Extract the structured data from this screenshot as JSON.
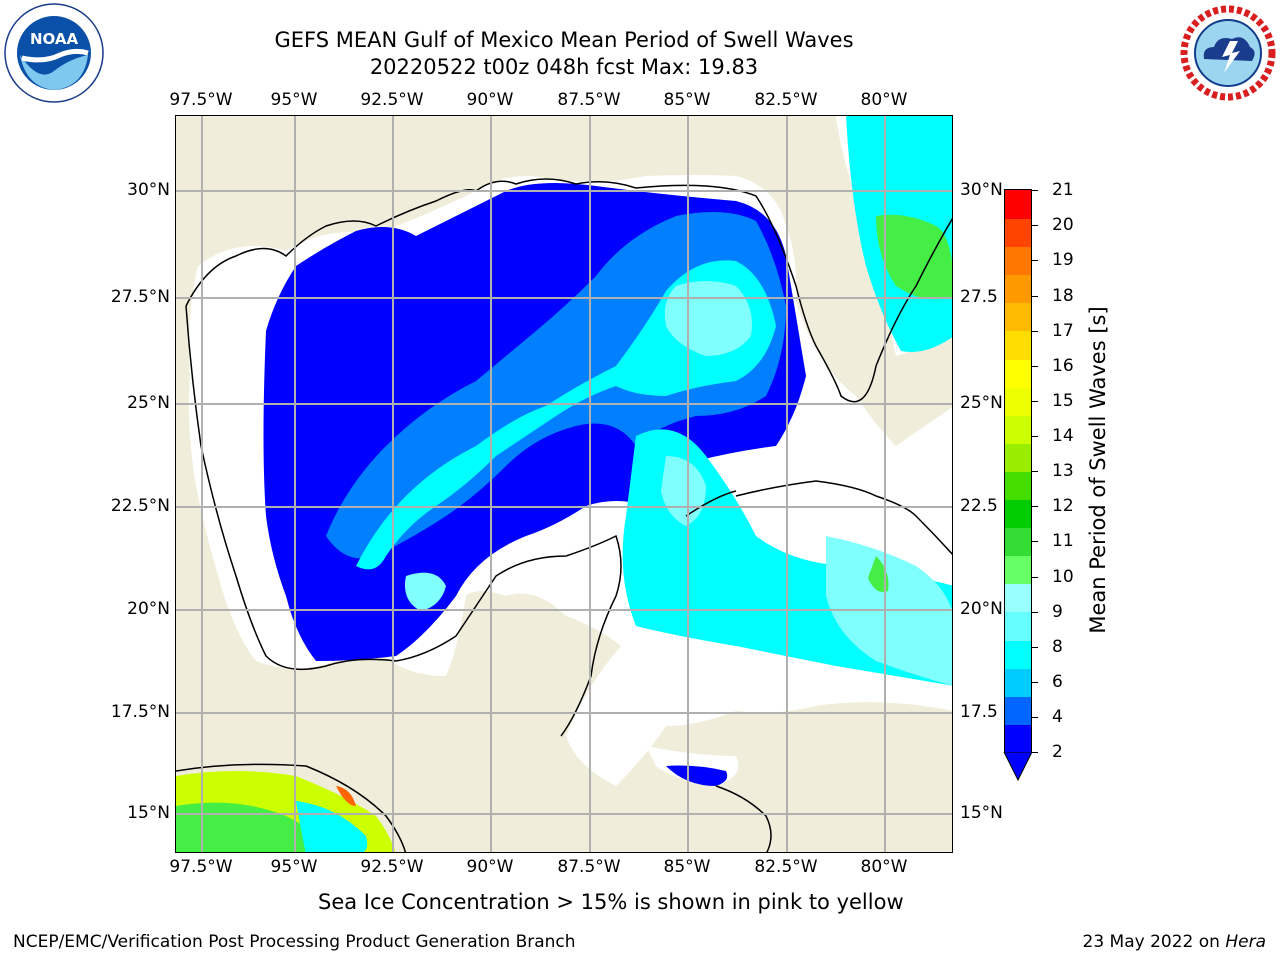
{
  "title": {
    "line1": "GEFS MEAN Gulf of Mexico Mean Period of Swell Waves",
    "line2": "20220522 t00z 048h fcst   Max: 19.83"
  },
  "logos": {
    "left": {
      "name": "NOAA",
      "ring_text": "NATIONAL OCEANIC AND ATMOSPHERIC ADMINISTRATION",
      "bottom_text": "U.S. DEPARTMENT OF COMMERCE"
    },
    "right": {
      "name": "NATIONAL WEATHER SERVICE"
    }
  },
  "axes": {
    "lon_ticks": [
      "97.5°W",
      "95°W",
      "92.5°W",
      "90°W",
      "87.5°W",
      "85°W",
      "82.5°W",
      "80°W"
    ],
    "lat_ticks_left": [
      "30°N",
      "27.5°N",
      "25°N",
      "22.5°N",
      "20°N",
      "17.5°N",
      "15°N"
    ],
    "lat_ticks_right": [
      "30°N",
      "27.5",
      "25°N",
      "22.5",
      "20°N",
      "17.5",
      "15°N"
    ]
  },
  "colorbar": {
    "label": "Mean Period of Swell Waves [s]",
    "ticks": [
      "21",
      "20",
      "19",
      "18",
      "17",
      "16",
      "15",
      "14",
      "13",
      "12",
      "11",
      "10",
      "9",
      "8",
      "6",
      "4",
      "2"
    ],
    "colors": [
      "#0000ff",
      "#0066ff",
      "#00ccff",
      "#00ffff",
      "#66ffff",
      "#99ffff",
      "#66ff66",
      "#33dd33",
      "#00cc00",
      "#44dd00",
      "#99ee00",
      "#ccff00",
      "#eeff00",
      "#ffff00",
      "#ffdd00",
      "#ffbb00",
      "#ff9900",
      "#ff7700",
      "#ff4400",
      "#ff0000"
    ],
    "extend_color": "#0000ff"
  },
  "map_colors": {
    "land": "#f0eedb",
    "no_data": "#ffffff",
    "deep_blue": "#0000ff",
    "mid_blue": "#0080ff",
    "cyan": "#00ffff",
    "light_cyan": "#80ffff",
    "green": "#44ee44",
    "yellow_green": "#ccff00"
  },
  "footer": {
    "ice_note": "Sea Ice Concentration > 15% is shown in pink to yellow",
    "credit": "NCEP/EMC/Verification Post Processing Product Generation Branch",
    "date": "23 May 2022 on",
    "host": "Hera"
  }
}
